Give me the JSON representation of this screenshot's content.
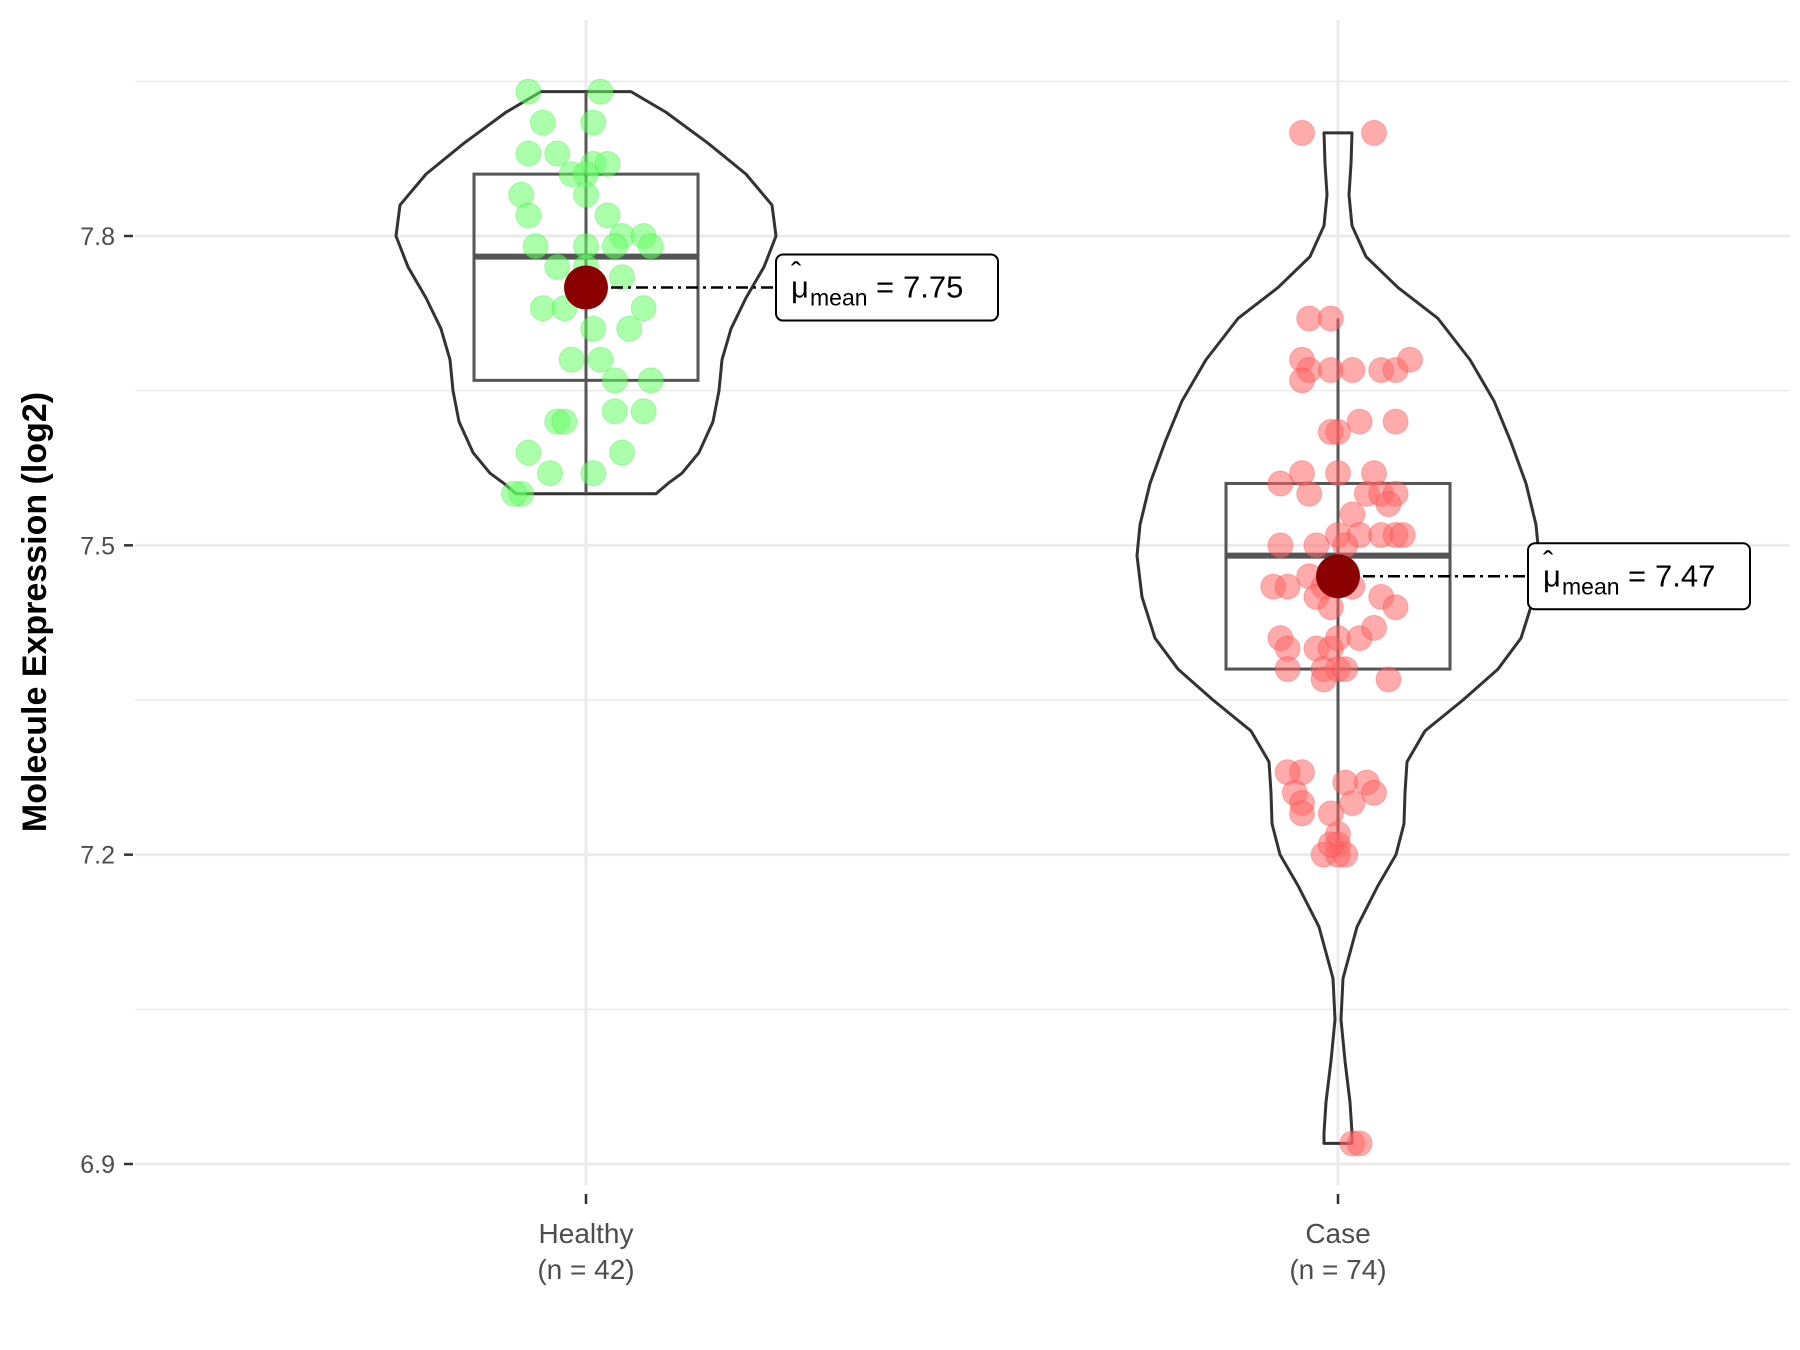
{
  "chart_data": {
    "type": "violin",
    "title": "",
    "xlabel": "",
    "ylabel": "Molecule Expression (log2)",
    "ylim": [
      6.85,
      7.97
    ],
    "yticks": [
      "6.9",
      "7.2",
      "7.5",
      "7.8"
    ],
    "grid": true,
    "categories": [
      "Healthy",
      "Case"
    ],
    "category_counts": [
      "(n = 42)",
      "(n = 74)"
    ],
    "groups": [
      {
        "name": "Healthy",
        "n_label": "(n = 42)",
        "color": "#00ee00",
        "point_color": "#66ff66",
        "min": 7.55,
        "q1": 7.66,
        "median": 7.78,
        "q3": 7.86,
        "max": 7.94,
        "mean": 7.75,
        "mean_label": "7.75",
        "points": [
          [
            -0.08,
            7.94
          ],
          [
            0.02,
            7.94
          ],
          [
            -0.06,
            7.91
          ],
          [
            0.01,
            7.91
          ],
          [
            -0.08,
            7.88
          ],
          [
            -0.04,
            7.88
          ],
          [
            0.01,
            7.87
          ],
          [
            -0.02,
            7.86
          ],
          [
            0.0,
            7.86
          ],
          [
            0.03,
            7.87
          ],
          [
            -0.09,
            7.84
          ],
          [
            -0.08,
            7.82
          ],
          [
            0.0,
            7.84
          ],
          [
            0.03,
            7.82
          ],
          [
            0.05,
            7.8
          ],
          [
            0.08,
            7.8
          ],
          [
            -0.07,
            7.79
          ],
          [
            0.0,
            7.79
          ],
          [
            0.04,
            7.79
          ],
          [
            0.09,
            7.79
          ],
          [
            -0.04,
            7.77
          ],
          [
            0.0,
            7.77
          ],
          [
            -0.06,
            7.73
          ],
          [
            -0.03,
            7.73
          ],
          [
            0.08,
            7.73
          ],
          [
            0.01,
            7.71
          ],
          [
            0.06,
            7.71
          ],
          [
            -0.02,
            7.68
          ],
          [
            0.02,
            7.68
          ],
          [
            0.04,
            7.66
          ],
          [
            0.09,
            7.66
          ],
          [
            0.04,
            7.63
          ],
          [
            0.08,
            7.63
          ],
          [
            -0.04,
            7.62
          ],
          [
            -0.03,
            7.62
          ],
          [
            -0.08,
            7.59
          ],
          [
            0.05,
            7.59
          ],
          [
            -0.05,
            7.57
          ],
          [
            0.01,
            7.57
          ],
          [
            -0.09,
            7.55
          ],
          [
            -0.1,
            7.55
          ],
          [
            0.05,
            7.76
          ]
        ]
      },
      {
        "name": "Case",
        "n_label": "(n = 74)",
        "color": "#ff2222",
        "point_color": "#ff6666",
        "min": 7.2,
        "q1": 7.38,
        "median": 7.49,
        "q3": 7.56,
        "max": 7.72,
        "mean": 7.47,
        "mean_label": "7.47",
        "outliers": [
          7.9,
          7.9,
          6.92,
          6.92
        ],
        "points": [
          [
            -0.05,
            7.9
          ],
          [
            0.05,
            7.9
          ],
          [
            -0.04,
            7.72
          ],
          [
            -0.01,
            7.72
          ],
          [
            -0.05,
            7.68
          ],
          [
            -0.04,
            7.67
          ],
          [
            -0.01,
            7.67
          ],
          [
            0.02,
            7.67
          ],
          [
            0.06,
            7.67
          ],
          [
            -0.05,
            7.66
          ],
          [
            0.08,
            7.67
          ],
          [
            0.1,
            7.68
          ],
          [
            0.03,
            7.62
          ],
          [
            0.08,
            7.62
          ],
          [
            0.0,
            7.61
          ],
          [
            -0.01,
            7.61
          ],
          [
            -0.05,
            7.57
          ],
          [
            -0.08,
            7.56
          ],
          [
            0.0,
            7.57
          ],
          [
            0.05,
            7.57
          ],
          [
            -0.04,
            7.55
          ],
          [
            0.04,
            7.55
          ],
          [
            0.06,
            7.55
          ],
          [
            0.08,
            7.55
          ],
          [
            0.02,
            7.53
          ],
          [
            0.07,
            7.54
          ],
          [
            0.0,
            7.51
          ],
          [
            0.03,
            7.51
          ],
          [
            0.06,
            7.51
          ],
          [
            0.08,
            7.51
          ],
          [
            -0.08,
            7.5
          ],
          [
            -0.03,
            7.5
          ],
          [
            0.01,
            7.5
          ],
          [
            0.09,
            7.51
          ],
          [
            -0.09,
            7.46
          ],
          [
            -0.07,
            7.46
          ],
          [
            -0.04,
            7.47
          ],
          [
            -0.02,
            7.46
          ],
          [
            0.02,
            7.46
          ],
          [
            -0.03,
            7.45
          ],
          [
            -0.01,
            7.44
          ],
          [
            0.06,
            7.45
          ],
          [
            0.08,
            7.44
          ],
          [
            -0.08,
            7.41
          ],
          [
            -0.07,
            7.4
          ],
          [
            -0.03,
            7.4
          ],
          [
            -0.01,
            7.4
          ],
          [
            0.0,
            7.41
          ],
          [
            0.03,
            7.41
          ],
          [
            0.05,
            7.42
          ],
          [
            -0.07,
            7.38
          ],
          [
            -0.02,
            7.38
          ],
          [
            0.0,
            7.38
          ],
          [
            0.01,
            7.38
          ],
          [
            0.07,
            7.37
          ],
          [
            -0.02,
            7.37
          ],
          [
            -0.05,
            7.28
          ],
          [
            -0.07,
            7.28
          ],
          [
            0.01,
            7.27
          ],
          [
            0.04,
            7.27
          ],
          [
            0.05,
            7.26
          ],
          [
            -0.06,
            7.26
          ],
          [
            -0.05,
            7.25
          ],
          [
            0.02,
            7.25
          ],
          [
            -0.01,
            7.24
          ],
          [
            -0.05,
            7.24
          ],
          [
            0.0,
            7.21
          ],
          [
            -0.02,
            7.2
          ],
          [
            0.0,
            7.2
          ],
          [
            0.01,
            7.2
          ],
          [
            0.02,
            6.92
          ],
          [
            0.03,
            6.92
          ],
          [
            -0.01,
            7.21
          ],
          [
            0.0,
            7.22
          ]
        ]
      }
    ]
  }
}
